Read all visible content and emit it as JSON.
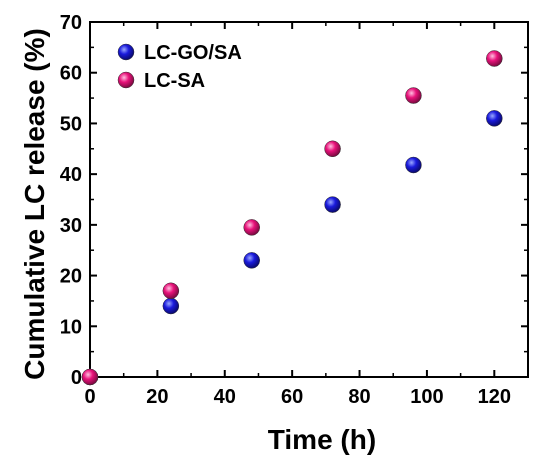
{
  "chart_data": {
    "type": "scatter",
    "title": "",
    "xlabel": "Time (h)",
    "ylabel": "Cumulative LC release (%)",
    "xlim": [
      0,
      130
    ],
    "ylim": [
      0,
      70
    ],
    "xticks": [
      0,
      20,
      40,
      60,
      80,
      100,
      120
    ],
    "yticks": [
      0,
      10,
      20,
      30,
      40,
      50,
      60,
      70
    ],
    "grid": false,
    "legend": "top-left",
    "series": [
      {
        "name": "LC-GO/SA",
        "color": "#1a1adc",
        "x": [
          0,
          24,
          48,
          72,
          96,
          120
        ],
        "y": [
          0,
          14,
          23,
          34,
          41.8,
          51
        ]
      },
      {
        "name": "LC-SA",
        "color": "#e8127a",
        "x": [
          0,
          24,
          48,
          72,
          96,
          120
        ],
        "y": [
          0,
          17,
          29.5,
          45,
          55.5,
          62.8
        ]
      }
    ]
  }
}
